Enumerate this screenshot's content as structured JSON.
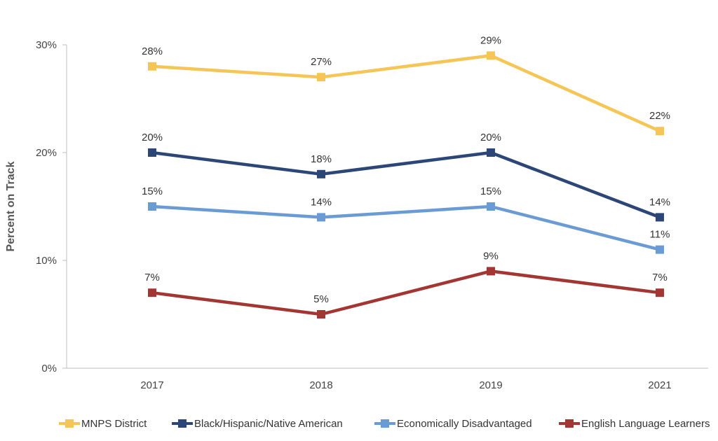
{
  "chart_data": {
    "type": "line",
    "title": "",
    "xlabel": "",
    "ylabel": "Percent on Track",
    "categories": [
      "2017",
      "2018",
      "2019",
      "2021"
    ],
    "ylim": [
      0,
      30
    ],
    "yticks": [
      "0%",
      "10%",
      "20%",
      "30%"
    ],
    "yticks_values": [
      0,
      10,
      20,
      30
    ],
    "grid": false,
    "legend_position": "bottom",
    "series": [
      {
        "name": "MNPS District",
        "color": "#F5C556",
        "values": [
          28,
          27,
          29,
          22
        ],
        "labels": [
          "28%",
          "27%",
          "29%",
          "22%"
        ]
      },
      {
        "name": "Black/Hispanic/Native American",
        "color": "#2C4677",
        "values": [
          20,
          18,
          20,
          14
        ],
        "labels": [
          "20%",
          "18%",
          "20%",
          "14%"
        ]
      },
      {
        "name": "Economically Disadvantaged",
        "color": "#6A9BD4",
        "values": [
          15,
          14,
          15,
          11
        ],
        "labels": [
          "15%",
          "14%",
          "15%",
          "11%"
        ]
      },
      {
        "name": "English Language Learners",
        "color": "#A33632",
        "values": [
          7,
          5,
          9,
          7
        ],
        "labels": [
          "7%",
          "5%",
          "9%",
          "7%"
        ]
      }
    ]
  }
}
